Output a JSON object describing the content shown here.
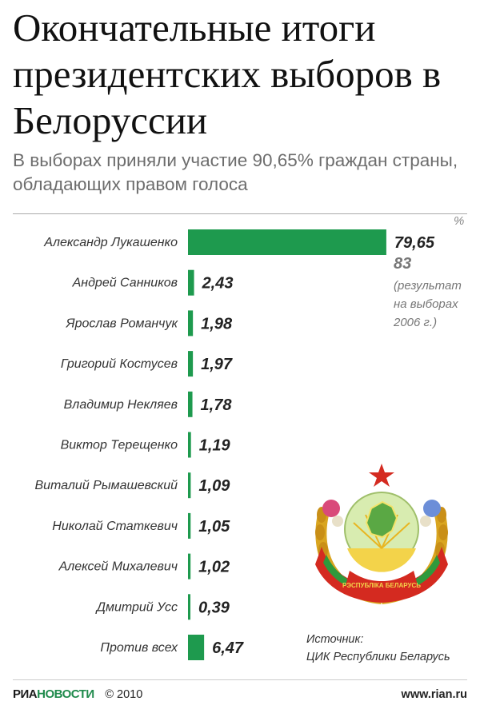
{
  "header": {
    "title": "Окончательные итоги президентских выборов в Белоруссии",
    "subtitle": "В выборах приняли участие 90,65% граждан страны, обладающих правом голоса",
    "unit": "%"
  },
  "chart_data": {
    "type": "bar",
    "orientation": "horizontal",
    "title": "Окончательные итоги президентских выборов в Белоруссии",
    "categories": [
      "Александр Лукашенко",
      "Андрей Санников",
      "Ярослав Романчук",
      "Григорий Костусев",
      "Владимир Некляев",
      "Виктор Терещенко",
      "Виталий Рымашевский",
      "Николай Статкевич",
      "Алексей Михалевич",
      "Дмитрий Усс",
      "Против всех"
    ],
    "values": [
      79.65,
      2.43,
      1.98,
      1.97,
      1.78,
      1.19,
      1.09,
      1.05,
      1.02,
      0.39,
      6.47
    ],
    "value_labels": [
      "79,65",
      "2,43",
      "1,98",
      "1,97",
      "1,78",
      "1,19",
      "1,09",
      "1,05",
      "1,02",
      "0,39",
      "6,47"
    ],
    "bar_color": "#1e9a4e",
    "xlim": [
      0,
      80
    ],
    "grid": false,
    "comparison": {
      "value": "83",
      "note": "(результат на выборах 2006 г.)"
    }
  },
  "emblem": {
    "ribbon_text": "РЭСПУБЛІКА БЕЛАРУСЬ"
  },
  "source": {
    "label": "Источник:",
    "text": "ЦИК Республики Беларусь"
  },
  "footer": {
    "logo_bold": "РИА",
    "logo_light": "НОВОСТИ",
    "copyright": "© 2010",
    "website": "www.rian.ru"
  },
  "colors": {
    "bar": "#1e9a4e",
    "emblem_red": "#d42a20",
    "emblem_green": "#2f9a3c",
    "emblem_gold": "#e8b521"
  }
}
